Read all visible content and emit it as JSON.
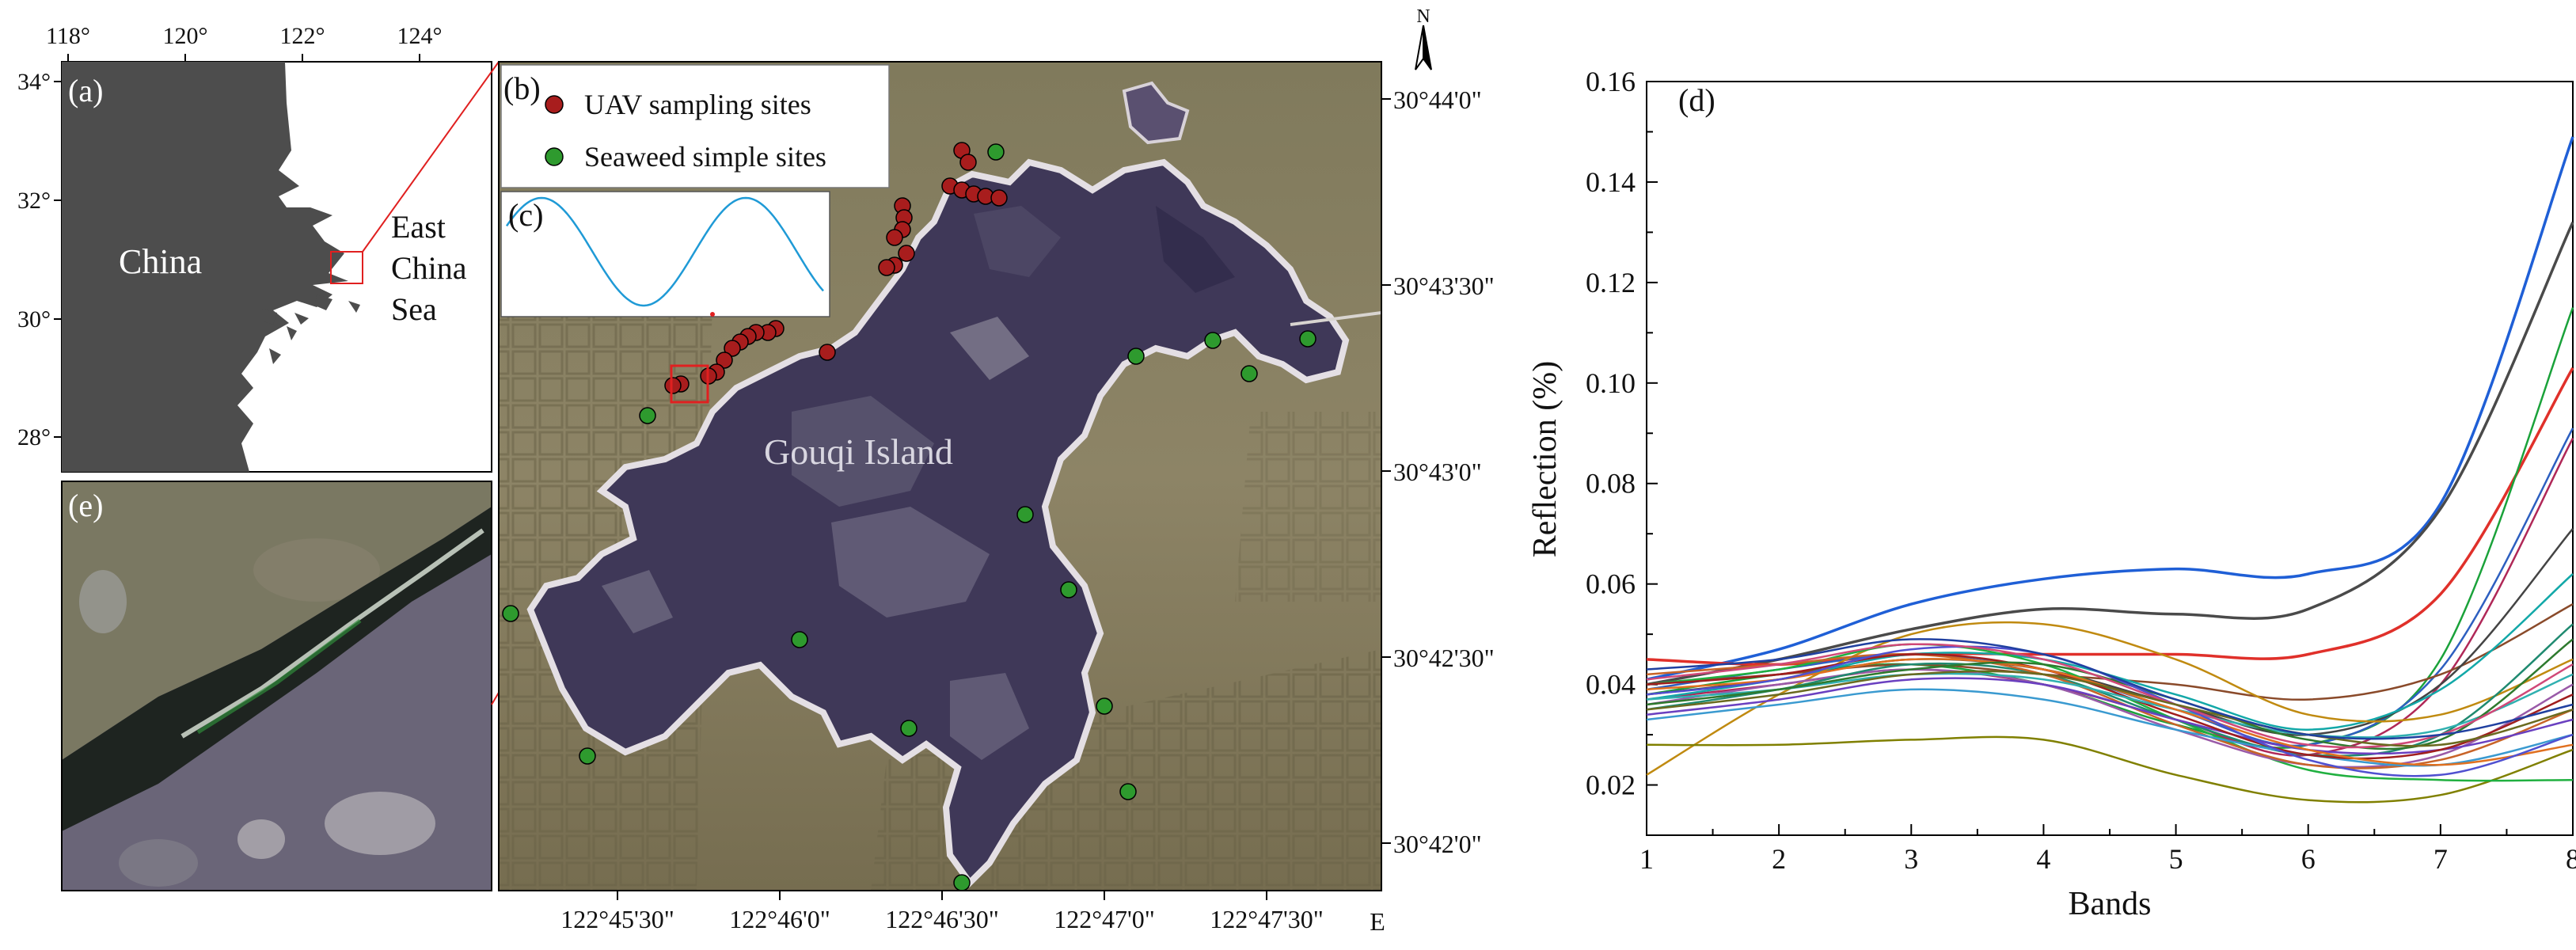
{
  "panel_a": {
    "label": "(a)",
    "china_label": "China",
    "sea_label": [
      "East",
      "China",
      "Sea"
    ],
    "lon_ticks": [
      "118°",
      "120°",
      "122°",
      "124°"
    ],
    "lat_ticks": [
      "34°",
      "32°",
      "30°",
      "28°"
    ]
  },
  "panel_b": {
    "label": "(b)",
    "legend": [
      {
        "name": "UAV sampling sites",
        "color": "#a81d1d"
      },
      {
        "name": "Seaweed simple sites",
        "color": "#2e9a2e"
      }
    ],
    "island_label": "Gouqi Island",
    "north_label": "N",
    "east_label": "E",
    "lat_ticks": [
      "30°44'0\"",
      "30°43'30\"",
      "30°43'0\"",
      "30°42'30\"",
      "30°42'0\""
    ],
    "lon_ticks": [
      "122°45'30\"",
      "122°46'0\"",
      "122°46'30\"",
      "122°47'0\"",
      "122°47'30\""
    ],
    "uav_sites": [
      [
        1215,
        190
      ],
      [
        1223,
        205
      ],
      [
        1200,
        235
      ],
      [
        1215,
        240
      ],
      [
        1230,
        245
      ],
      [
        1245,
        248
      ],
      [
        1262,
        250
      ],
      [
        1140,
        260
      ],
      [
        1142,
        275
      ],
      [
        1140,
        290
      ],
      [
        1130,
        300
      ],
      [
        1145,
        320
      ],
      [
        1130,
        335
      ],
      [
        1120,
        338
      ],
      [
        980,
        415
      ],
      [
        970,
        420
      ],
      [
        955,
        420
      ],
      [
        945,
        425
      ],
      [
        935,
        432
      ],
      [
        925,
        440
      ],
      [
        915,
        455
      ],
      [
        905,
        470
      ],
      [
        895,
        475
      ],
      [
        860,
        485
      ],
      [
        850,
        487
      ],
      [
        1045,
        445
      ]
    ],
    "seaweed_sites": [
      [
        1258,
        192
      ],
      [
        1435,
        450
      ],
      [
        1532,
        430
      ],
      [
        1578,
        472
      ],
      [
        1652,
        428
      ],
      [
        818,
        525
      ],
      [
        1295,
        650
      ],
      [
        1350,
        745
      ],
      [
        1010,
        808
      ],
      [
        645,
        775
      ],
      [
        1395,
        892
      ],
      [
        1148,
        920
      ],
      [
        742,
        955
      ],
      [
        1425,
        1000
      ],
      [
        1215,
        1115
      ]
    ]
  },
  "panel_c": {
    "label": "(c)"
  },
  "panel_d": {
    "label": "(d)"
  },
  "panel_e": {
    "label": "(e)"
  },
  "chart_data": {
    "type": "line",
    "xlabel": "Bands",
    "ylabel": "Reflection (%)",
    "xlim": [
      1,
      8
    ],
    "ylim": [
      0.01,
      0.16
    ],
    "x_ticks": [
      1,
      2,
      3,
      4,
      5,
      6,
      7,
      8
    ],
    "y_ticks": [
      0.02,
      0.04,
      0.06,
      0.08,
      0.1,
      0.12,
      0.14,
      0.16
    ],
    "y_tick_labels": [
      "0.02",
      "0.04",
      "0.06",
      "0.08",
      "0.10",
      "0.12",
      "0.14",
      "0.16"
    ],
    "x": [
      1,
      2,
      3,
      4,
      5,
      6,
      7,
      8
    ],
    "series": [
      {
        "color": "#1f5fd6",
        "values": [
          0.041,
          0.047,
          0.056,
          0.061,
          0.063,
          0.062,
          0.076,
          0.149
        ]
      },
      {
        "color": "#4a4a4a",
        "values": [
          0.04,
          0.045,
          0.051,
          0.055,
          0.054,
          0.055,
          0.075,
          0.132
        ]
      },
      {
        "color": "#e0302a",
        "values": [
          0.045,
          0.044,
          0.046,
          0.046,
          0.046,
          0.046,
          0.058,
          0.103
        ]
      },
      {
        "color": "#1aa23a",
        "values": [
          0.038,
          0.042,
          0.044,
          0.04,
          0.032,
          0.028,
          0.045,
          0.115
        ]
      },
      {
        "color": "#b02858",
        "values": [
          0.037,
          0.04,
          0.043,
          0.04,
          0.033,
          0.026,
          0.04,
          0.089
        ]
      },
      {
        "color": "#2d5fc0",
        "values": [
          0.039,
          0.043,
          0.046,
          0.043,
          0.035,
          0.028,
          0.043,
          0.091
        ]
      },
      {
        "color": "#8a4a2a",
        "values": [
          0.04,
          0.042,
          0.044,
          0.042,
          0.04,
          0.037,
          0.042,
          0.056
        ]
      },
      {
        "color": "#444444",
        "values": [
          0.038,
          0.041,
          0.045,
          0.043,
          0.036,
          0.03,
          0.04,
          0.071
        ]
      },
      {
        "color": "#12a8a8",
        "values": [
          0.037,
          0.041,
          0.046,
          0.045,
          0.038,
          0.031,
          0.039,
          0.062
        ]
      },
      {
        "color": "#c08a10",
        "values": [
          0.022,
          0.038,
          0.05,
          0.052,
          0.045,
          0.034,
          0.034,
          0.045
        ]
      },
      {
        "color": "#808000",
        "values": [
          0.028,
          0.028,
          0.029,
          0.029,
          0.022,
          0.017,
          0.018,
          0.027
        ]
      },
      {
        "color": "#20b040",
        "values": [
          0.04,
          0.043,
          0.048,
          0.044,
          0.033,
          0.023,
          0.021,
          0.021
        ]
      },
      {
        "color": "#9a5aa8",
        "values": [
          0.036,
          0.04,
          0.043,
          0.04,
          0.031,
          0.024,
          0.026,
          0.04
        ]
      },
      {
        "color": "#1f8a70",
        "values": [
          0.035,
          0.039,
          0.044,
          0.042,
          0.033,
          0.026,
          0.03,
          0.052
        ]
      },
      {
        "color": "#c86428",
        "values": [
          0.042,
          0.044,
          0.046,
          0.042,
          0.032,
          0.024,
          0.025,
          0.035
        ]
      },
      {
        "color": "#6a40c0",
        "values": [
          0.034,
          0.037,
          0.041,
          0.04,
          0.033,
          0.027,
          0.027,
          0.033
        ]
      },
      {
        "color": "#3a9ad0",
        "values": [
          0.033,
          0.036,
          0.039,
          0.037,
          0.031,
          0.026,
          0.024,
          0.03
        ]
      },
      {
        "color": "#a01e1e",
        "values": [
          0.04,
          0.042,
          0.046,
          0.043,
          0.034,
          0.026,
          0.027,
          0.038
        ]
      },
      {
        "color": "#30b0b0",
        "values": [
          0.037,
          0.039,
          0.042,
          0.041,
          0.035,
          0.03,
          0.031,
          0.042
        ]
      },
      {
        "color": "#e07020",
        "values": [
          0.039,
          0.041,
          0.045,
          0.043,
          0.035,
          0.027,
          0.024,
          0.028
        ]
      },
      {
        "color": "#2e7a2e",
        "values": [
          0.036,
          0.039,
          0.043,
          0.044,
          0.037,
          0.029,
          0.029,
          0.049
        ]
      },
      {
        "color": "#5050d0",
        "values": [
          0.038,
          0.041,
          0.047,
          0.046,
          0.036,
          0.025,
          0.022,
          0.03
        ]
      },
      {
        "color": "#d04878",
        "values": [
          0.041,
          0.044,
          0.048,
          0.045,
          0.036,
          0.028,
          0.03,
          0.044
        ]
      },
      {
        "color": "#6a6a20",
        "values": [
          0.035,
          0.038,
          0.042,
          0.042,
          0.036,
          0.03,
          0.028,
          0.035
        ]
      },
      {
        "color": "#2040a0",
        "values": [
          0.043,
          0.045,
          0.049,
          0.046,
          0.037,
          0.03,
          0.03,
          0.036
        ]
      }
    ]
  }
}
